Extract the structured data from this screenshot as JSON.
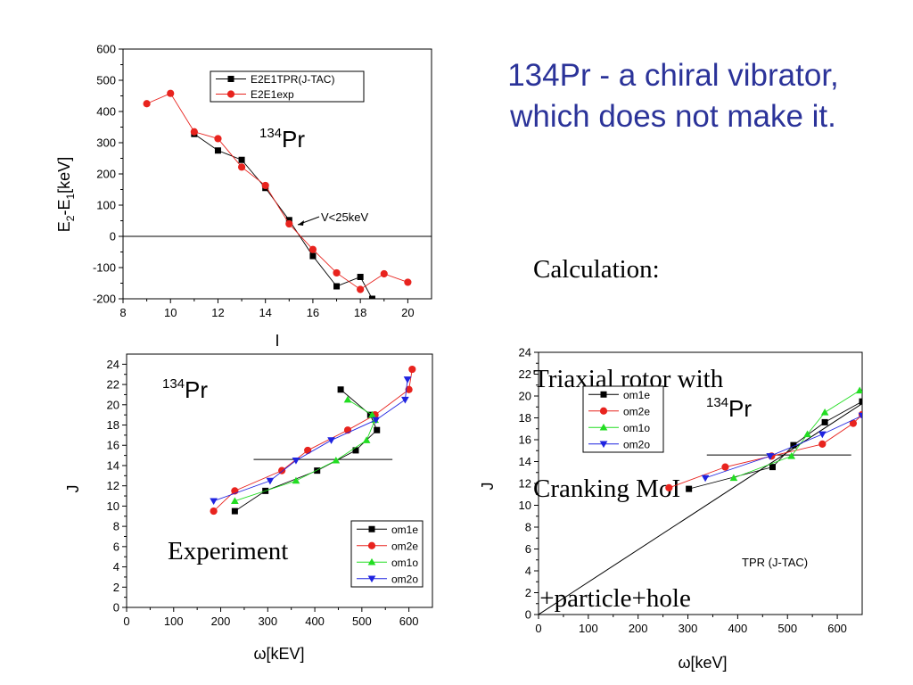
{
  "slide": {
    "title_line1": "134Pr - a chiral vibrator,",
    "title_line2": "which does not make it.",
    "calc_lines": [
      "Calculation:",
      "Triaxial rotor with",
      "Cranking MoI",
      " +particle+hole"
    ],
    "experiment_label": "Experiment"
  },
  "chart_data": [
    {
      "type": "line",
      "xlabel": "I",
      "ylabel": "E2-E1[keV]",
      "xlim": [
        8,
        21
      ],
      "ylim": [
        -200,
        600
      ],
      "xticks": [
        8,
        10,
        12,
        14,
        16,
        18,
        20
      ],
      "yticks": [
        -200,
        -100,
        0,
        100,
        200,
        300,
        400,
        500,
        600
      ],
      "nucleus_label": {
        "mass": "134",
        "symbol": "Pr"
      },
      "annotation": "V<25keV",
      "reference_line_y": 0,
      "legend_position": "top-right",
      "series": [
        {
          "name": "E2E1TPR(J-TAC)",
          "color": "#000000",
          "marker": "square",
          "x": [
            11,
            12,
            13,
            14,
            15,
            16,
            17,
            18,
            18.5
          ],
          "y": [
            328,
            275,
            245,
            155,
            52,
            -63,
            -160,
            -130,
            -200
          ]
        },
        {
          "name": "E2E1exp",
          "color": "#e8231e",
          "marker": "circle",
          "x": [
            9,
            10,
            11,
            12,
            13,
            14,
            15,
            16,
            17,
            18,
            19,
            20
          ],
          "y": [
            425,
            458,
            335,
            313,
            222,
            163,
            40,
            -42,
            -117,
            -170,
            -120,
            -147
          ]
        }
      ]
    },
    {
      "type": "line",
      "xlabel": "ω[kEV]",
      "ylabel": "J",
      "xlim": [
        0,
        650
      ],
      "ylim": [
        0,
        25
      ],
      "xticks": [
        0,
        100,
        200,
        300,
        400,
        500,
        600
      ],
      "yticks": [
        0,
        2,
        4,
        6,
        8,
        10,
        12,
        14,
        16,
        18,
        20,
        22,
        24
      ],
      "nucleus_label": {
        "mass": "134",
        "symbol": "Pr"
      },
      "reference_line": {
        "x": [
          270,
          565
        ],
        "y": 14.6
      },
      "legend_position": "bottom-right",
      "series": [
        {
          "name": "om1e",
          "color": "#000000",
          "marker": "square",
          "x": [
            230,
            295,
            405,
            487,
            532,
            518,
            455
          ],
          "y": [
            9.5,
            11.5,
            13.5,
            15.5,
            17.5,
            19,
            21.5
          ]
        },
        {
          "name": "om2e",
          "color": "#e8231e",
          "marker": "circle",
          "x": [
            185,
            230,
            330,
            385,
            470,
            528,
            600,
            607
          ],
          "y": [
            9.5,
            11.5,
            13.5,
            15.5,
            17.5,
            19,
            21.5,
            23.5
          ]
        },
        {
          "name": "om1o",
          "color": "#22dd22",
          "marker": "triangle-up",
          "x": [
            230,
            360,
            445,
            510,
            528,
            522,
            470
          ],
          "y": [
            10.5,
            12.5,
            14.5,
            16.5,
            18.5,
            19,
            20.5
          ]
        },
        {
          "name": "om2o",
          "color": "#1f23e0",
          "marker": "triangle-down",
          "x": [
            185,
            305,
            360,
            435,
            530,
            592,
            597
          ],
          "y": [
            10.5,
            12.5,
            14.5,
            16.5,
            18.5,
            20.5,
            22.5
          ]
        }
      ]
    },
    {
      "type": "line",
      "xlabel": "ω[keV]",
      "ylabel": "J",
      "xlim": [
        0,
        650
      ],
      "ylim": [
        0,
        24
      ],
      "xticks": [
        0,
        100,
        200,
        300,
        400,
        500,
        600
      ],
      "yticks": [
        0,
        2,
        4,
        6,
        8,
        10,
        12,
        14,
        16,
        18,
        20,
        22,
        24
      ],
      "nucleus_label": {
        "mass": "134",
        "symbol": "Pr"
      },
      "annotation": "TPR (J-TAC)",
      "reference_line": {
        "x": [
          338,
          628
        ],
        "y": 14.6
      },
      "diagonal_line": {
        "x": [
          0,
          650
        ],
        "y": [
          0,
          19.3
        ]
      },
      "legend_position": "top-left",
      "series": [
        {
          "name": "om1e",
          "color": "#000000",
          "marker": "square",
          "x": [
            302,
            470,
            512,
            575,
            650
          ],
          "y": [
            11.5,
            13.5,
            15.5,
            17.6,
            19.5
          ]
        },
        {
          "name": "om2e",
          "color": "#e8231e",
          "marker": "circle",
          "x": [
            262,
            375,
            468,
            570,
            632,
            650
          ],
          "y": [
            11.6,
            13.5,
            14.5,
            15.6,
            17.5,
            18.3
          ]
        },
        {
          "name": "om1o",
          "color": "#22dd22",
          "marker": "triangle-up",
          "x": [
            392,
            508,
            540,
            575,
            645
          ],
          "y": [
            12.5,
            14.5,
            16.5,
            18.5,
            20.5
          ]
        },
        {
          "name": "om2o",
          "color": "#1f23e0",
          "marker": "triangle-down",
          "x": [
            335,
            465,
            570,
            650
          ],
          "y": [
            12.5,
            14.5,
            16.5,
            18.2
          ]
        }
      ]
    }
  ]
}
